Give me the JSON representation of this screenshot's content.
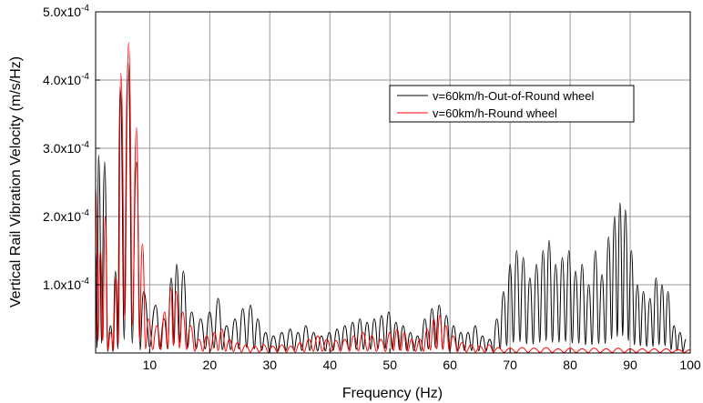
{
  "chart_data": {
    "type": "line",
    "xlabel": "Frequency (Hz)",
    "ylabel": "Vertical Rail Vibration Velocity (m/s/Hz)",
    "xlim": [
      1,
      100
    ],
    "ylim": [
      0,
      0.0005
    ],
    "x_ticks": [
      10,
      20,
      30,
      40,
      50,
      60,
      70,
      80,
      90,
      100
    ],
    "x_tick_labels": [
      "10",
      "20",
      "30",
      "40",
      "50",
      "60",
      "70",
      "80",
      "90",
      "100"
    ],
    "y_ticks": [
      0.0001,
      0.0002,
      0.0003,
      0.0004,
      0.0005
    ],
    "y_tick_labels": [
      {
        "mantissa": "1.0x10",
        "exp": "-4"
      },
      {
        "mantissa": "2.0x10",
        "exp": "-4"
      },
      {
        "mantissa": "3.0x10",
        "exp": "-4"
      },
      {
        "mantissa": "4.0x10",
        "exp": "-4"
      },
      {
        "mantissa": "5.0x10",
        "exp": "-4"
      }
    ],
    "grid": true,
    "legend_position": "top-right",
    "series": [
      {
        "name": "v=60km/h-Out-of-Round wheel",
        "color": "#000000",
        "peaks": [
          [
            1,
            0.00015
          ],
          [
            1.5,
            0.00029
          ],
          [
            2.5,
            0.00028
          ],
          [
            3.5,
            4e-05
          ],
          [
            4.3,
            0.00012
          ],
          [
            5.1,
            0.00039
          ],
          [
            6.4,
            0.000425
          ],
          [
            7.8,
            0.00028
          ],
          [
            9.0,
            9e-05
          ],
          [
            11.0,
            7e-05
          ],
          [
            12.4,
            5e-05
          ],
          [
            13.6,
            0.00011
          ],
          [
            14.5,
            0.00013
          ],
          [
            15.6,
            0.00012
          ],
          [
            17.0,
            6e-05
          ],
          [
            18.5,
            5e-05
          ],
          [
            20.0,
            6e-05
          ],
          [
            21.4,
            8e-05
          ],
          [
            22.8,
            4e-05
          ],
          [
            24.2,
            5e-05
          ],
          [
            25.5,
            6.5e-05
          ],
          [
            26.8,
            7e-05
          ],
          [
            28.0,
            5e-05
          ],
          [
            29.3,
            3e-05
          ],
          [
            30.6,
            2.5e-05
          ],
          [
            32.0,
            3e-05
          ],
          [
            33.4,
            3.5e-05
          ],
          [
            34.7,
            3e-05
          ],
          [
            36.0,
            4e-05
          ],
          [
            37.3,
            3e-05
          ],
          [
            38.6,
            2.5e-05
          ],
          [
            39.9,
            3e-05
          ],
          [
            41.2,
            3.5e-05
          ],
          [
            42.5,
            4e-05
          ],
          [
            43.8,
            4.5e-05
          ],
          [
            45.0,
            5e-05
          ],
          [
            46.2,
            4.5e-05
          ],
          [
            47.4,
            5e-05
          ],
          [
            48.6,
            5.5e-05
          ],
          [
            49.8,
            6e-05
          ],
          [
            51.0,
            4.5e-05
          ],
          [
            52.2,
            4e-05
          ],
          [
            53.4,
            3e-05
          ],
          [
            54.6,
            2.5e-05
          ],
          [
            55.8,
            5e-05
          ],
          [
            57.0,
            6.5e-05
          ],
          [
            58.2,
            7e-05
          ],
          [
            59.4,
            5.5e-05
          ],
          [
            60.6,
            4e-05
          ],
          [
            61.8,
            3e-05
          ],
          [
            63.0,
            3e-05
          ],
          [
            64.2,
            4e-05
          ],
          [
            65.4,
            2.5e-05
          ],
          [
            66.6,
            2e-05
          ],
          [
            67.8,
            5e-05
          ],
          [
            68.9,
            9e-05
          ],
          [
            70.0,
            0.00013
          ],
          [
            71.1,
            0.00015
          ],
          [
            72.2,
            0.00014
          ],
          [
            73.3,
            0.00011
          ],
          [
            74.4,
            0.00013
          ],
          [
            75.5,
            0.00015
          ],
          [
            76.5,
            0.000165
          ],
          [
            77.6,
            0.00013
          ],
          [
            78.7,
            0.00014
          ],
          [
            79.8,
            0.00015
          ],
          [
            80.9,
            0.00012
          ],
          [
            82.0,
            0.00013
          ],
          [
            83.1,
            0.0001
          ],
          [
            84.2,
            0.00015
          ],
          [
            85.3,
            0.000115
          ],
          [
            86.4,
            0.00017
          ],
          [
            87.4,
            0.0002
          ],
          [
            88.3,
            0.00022
          ],
          [
            89.2,
            0.00021
          ],
          [
            90.2,
            0.00015
          ],
          [
            91.2,
            0.0001
          ],
          [
            92.2,
            9e-05
          ],
          [
            93.3,
            8e-05
          ],
          [
            94.3,
            0.00011
          ],
          [
            95.3,
            0.0001
          ],
          [
            96.3,
            9e-05
          ],
          [
            97.3,
            4e-05
          ],
          [
            98.3,
            3e-05
          ],
          [
            99.3,
            2e-05
          ]
        ]
      },
      {
        "name": "v=60km/h-Round wheel",
        "color": "#ff0000",
        "peaks": [
          [
            1,
            0.000245
          ],
          [
            1.8,
            0.00015
          ],
          [
            2.6,
            0.0002
          ],
          [
            3.5,
            3e-05
          ],
          [
            4.4,
            0.00011
          ],
          [
            5.2,
            0.00041
          ],
          [
            6.5,
            0.000455
          ],
          [
            7.8,
            0.00033
          ],
          [
            8.8,
            0.00016
          ],
          [
            9.8,
            5e-05
          ],
          [
            11.2,
            4e-05
          ],
          [
            12.5,
            6e-05
          ],
          [
            13.5,
            9.5e-05
          ],
          [
            14.4,
            9e-05
          ],
          [
            15.5,
            6e-05
          ],
          [
            16.8,
            4e-05
          ],
          [
            18.2,
            2e-05
          ],
          [
            19.5,
            2.5e-05
          ],
          [
            20.8,
            3e-05
          ],
          [
            22.0,
            3.5e-05
          ],
          [
            23.3,
            2e-05
          ],
          [
            24.6,
            1.5e-05
          ],
          [
            26.0,
            1.2e-05
          ],
          [
            27.5,
            1e-05
          ],
          [
            29.0,
            1.2e-05
          ],
          [
            30.5,
            1e-05
          ],
          [
            32.0,
            1.2e-05
          ],
          [
            33.5,
            1e-05
          ],
          [
            35.0,
            1.5e-05
          ],
          [
            36.5,
            2e-05
          ],
          [
            38.0,
            2.5e-05
          ],
          [
            39.5,
            2e-05
          ],
          [
            41.0,
            1.8e-05
          ],
          [
            42.5,
            2e-05
          ],
          [
            44.0,
            2.5e-05
          ],
          [
            45.5,
            3e-05
          ],
          [
            47.0,
            2.5e-05
          ],
          [
            48.5,
            2e-05
          ],
          [
            50.0,
            3e-05
          ],
          [
            51.2,
            3.5e-05
          ],
          [
            52.4,
            3e-05
          ],
          [
            53.6,
            2e-05
          ],
          [
            55.0,
            2e-05
          ],
          [
            56.2,
            3.5e-05
          ],
          [
            57.3,
            5e-05
          ],
          [
            58.3,
            5.5e-05
          ],
          [
            59.3,
            4e-05
          ],
          [
            60.5,
            2.5e-05
          ],
          [
            62.0,
            1.5e-05
          ],
          [
            63.5,
            1.2e-05
          ],
          [
            65.0,
            1e-05
          ],
          [
            66.5,
            1.2e-05
          ],
          [
            68.0,
            8e-06
          ],
          [
            70.0,
            7e-06
          ],
          [
            72.0,
            8e-06
          ],
          [
            74.0,
            7e-06
          ],
          [
            76.0,
            8e-06
          ],
          [
            78.0,
            6e-06
          ],
          [
            80.0,
            7e-06
          ],
          [
            82.0,
            6e-06
          ],
          [
            84.0,
            7e-06
          ],
          [
            86.0,
            6e-06
          ],
          [
            88.0,
            7e-06
          ],
          [
            90.0,
            6e-06
          ],
          [
            92.0,
            6e-06
          ],
          [
            94.0,
            6e-06
          ],
          [
            96.0,
            6e-06
          ],
          [
            98.0,
            5e-06
          ],
          [
            100.0,
            5e-06
          ]
        ]
      }
    ]
  }
}
